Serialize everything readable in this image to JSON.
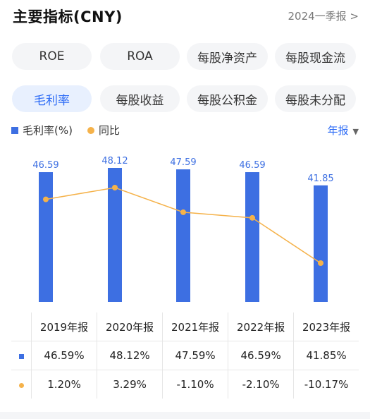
{
  "header": {
    "title": "主要指标(CNY)",
    "period": "2024一季报 >"
  },
  "chips": [
    {
      "label": "ROE",
      "active": false
    },
    {
      "label": "ROA",
      "active": false
    },
    {
      "label": "每股净资产",
      "active": false
    },
    {
      "label": "每股现金流",
      "active": false
    },
    {
      "label": "毛利率",
      "active": true
    },
    {
      "label": "每股收益",
      "active": false
    },
    {
      "label": "每股公积金",
      "active": false
    },
    {
      "label": "每股未分配",
      "active": false
    }
  ],
  "legend": {
    "bar_label": "毛利率(%)",
    "line_label": "同比",
    "period_select": "年报",
    "caret": "▼"
  },
  "colors": {
    "bar": "#3d6fe2",
    "line": "#f5b24a",
    "positive": "#e0533f",
    "negative": "#2fa36b",
    "accent": "#2f6df6"
  },
  "chart_data": {
    "type": "bar",
    "categories": [
      "2019年报",
      "2020年报",
      "2021年报",
      "2022年报",
      "2023年报"
    ],
    "series": [
      {
        "name": "毛利率(%)",
        "type": "bar",
        "values": [
          46.59,
          48.12,
          47.59,
          46.59,
          41.85
        ]
      },
      {
        "name": "同比",
        "type": "line",
        "values": [
          1.2,
          3.29,
          -1.1,
          -2.1,
          -10.17
        ]
      }
    ],
    "data_labels": [
      "46.59",
      "48.12",
      "47.59",
      "46.59",
      "41.85"
    ]
  },
  "table": {
    "headers": [
      "2019年报",
      "2020年报",
      "2021年报",
      "2022年报",
      "2023年报"
    ],
    "bar_row": [
      "46.59%",
      "48.12%",
      "47.59%",
      "46.59%",
      "41.85%"
    ],
    "line_row": [
      "1.20%",
      "3.29%",
      "-1.10%",
      "-2.10%",
      "-10.17%"
    ]
  }
}
